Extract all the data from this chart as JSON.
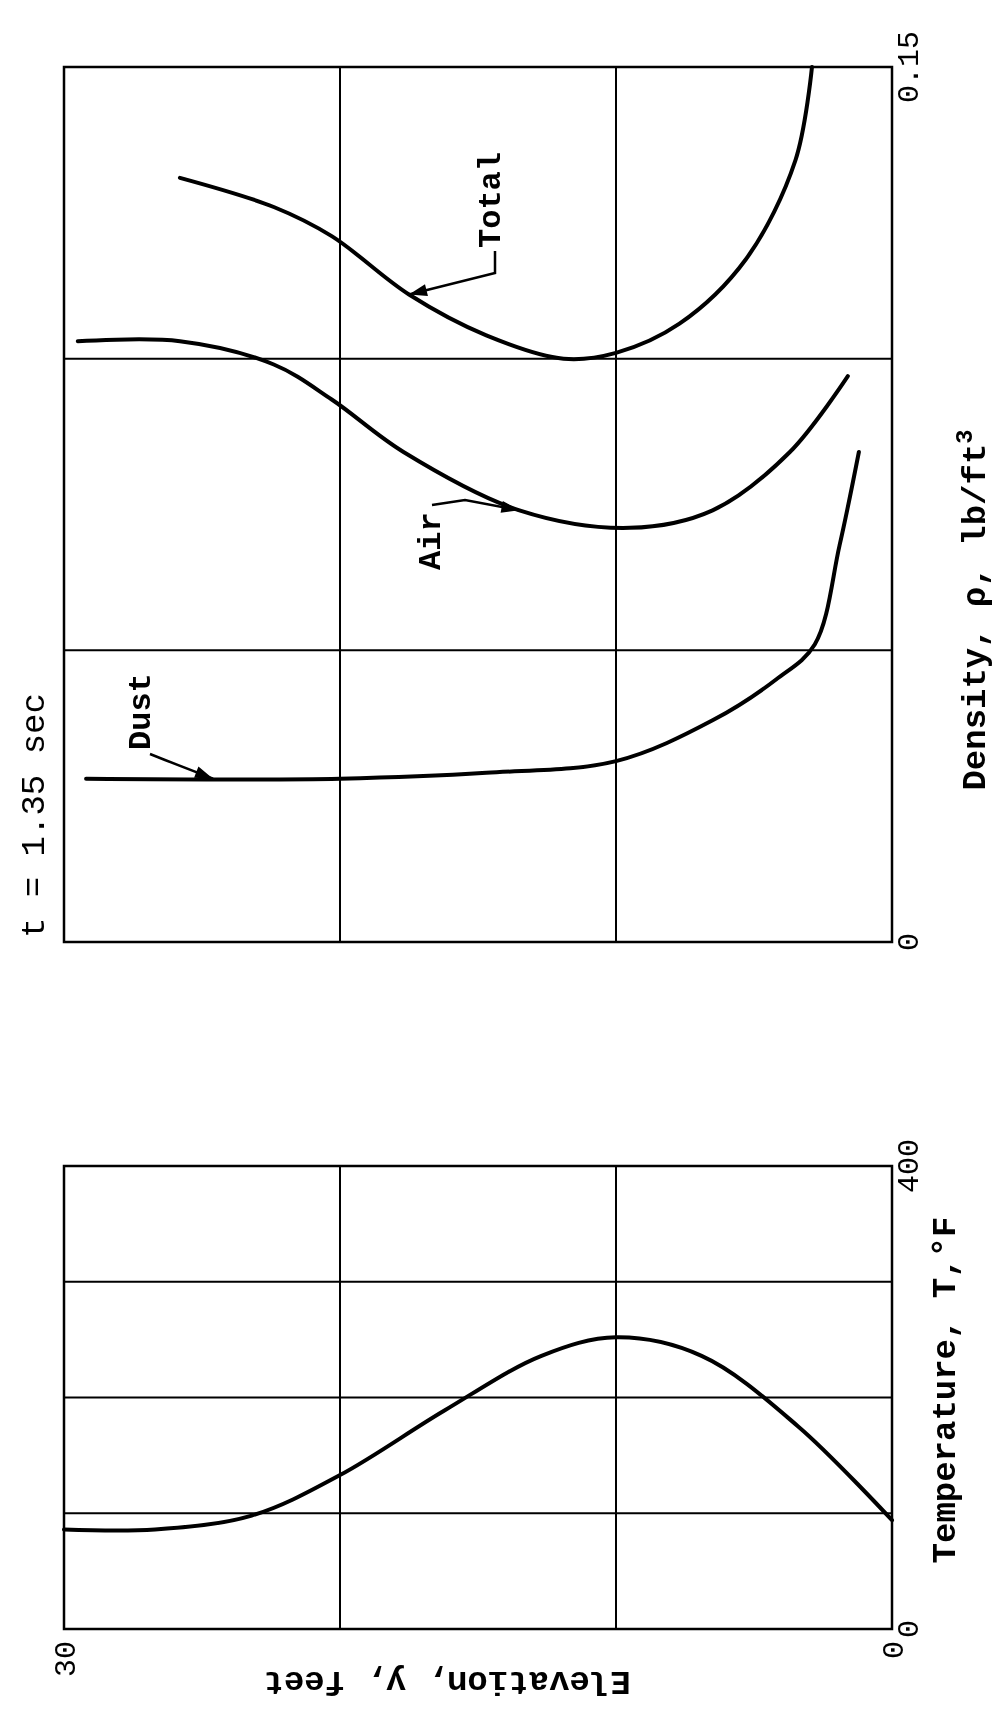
{
  "chart_data": [
    {
      "type": "line",
      "xlabel": "Elevation, y, feet",
      "ylabel": "Temperature, T,°F",
      "xlim": [
        30,
        0
      ],
      "xticks": [
        30,
        {
          "value": 20,
          "label": null
        },
        {
          "value": 10,
          "label": null
        },
        0
      ],
      "ylim": [
        0,
        400
      ],
      "yticks": [
        0,
        {
          "value": 100,
          "label": null
        },
        {
          "value": 200,
          "label": null
        },
        {
          "value": 300,
          "label": null
        },
        400
      ],
      "grid": true,
      "series": [
        {
          "color": "#000000",
          "x": [
            30,
            26.7,
            23.2,
            20,
            16.2,
            12.7,
            10,
            6.9,
            3.4,
            0
          ],
          "values": [
            86,
            86,
            98,
            133,
            189,
            236,
            252,
            236,
            175,
            94
          ]
        }
      ]
    },
    {
      "type": "line",
      "ylabel": "Density, ρ, lb/ft$^{3}$",
      "xlim": [
        30,
        0
      ],
      "xticks": [
        {
          "value": 30,
          "label": null
        },
        {
          "value": 20,
          "label": null
        },
        {
          "value": 10,
          "label": null
        },
        {
          "value": 0,
          "label": null
        }
      ],
      "ylim": [
        0,
        0.15
      ],
      "yticks": [
        0,
        {
          "value": 0.05,
          "label": null
        },
        {
          "value": 0.1,
          "label": null
        },
        0.15
      ],
      "grid": true,
      "tick_labels": "y",
      "annotations": [
        "t = 1.35 sec"
      ],
      "series": [
        {
          "name": "Total",
          "color": "#000000",
          "x": [
            25.8,
            22.4,
            20.3,
            17.5,
            14.7,
            11.9,
            10,
            7.7,
            5.3,
            3.5,
            2.9
          ],
          "values": [
            0.131,
            0.126,
            0.121,
            0.111,
            0.104,
            0.1,
            0.101,
            0.106,
            0.117,
            0.134,
            0.15
          ]
        },
        {
          "name": "Air",
          "color": "#000000",
          "x": [
            29.5,
            25.8,
            22.4,
            20.3,
            17.7,
            13.5,
            9.5,
            6.5,
            3.7,
            1.6
          ],
          "values": [
            0.103,
            0.103,
            0.099,
            0.093,
            0.084,
            0.074,
            0.071,
            0.074,
            0.084,
            0.097
          ]
        },
        {
          "name": "Dust",
          "color": "#000000",
          "x": [
            29.2,
            20,
            14.7,
            10,
            6.5,
            4.2,
            2.8,
            1.9,
            1.2
          ],
          "values": [
            0.028,
            0.028,
            0.029,
            0.031,
            0.038,
            0.045,
            0.051,
            0.068,
            0.084
          ]
        }
      ]
    }
  ]
}
